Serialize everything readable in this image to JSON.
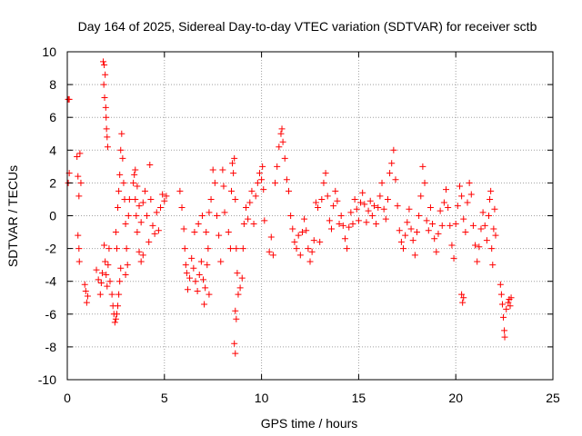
{
  "chart_data": {
    "type": "scatter",
    "title": "Day 164 of 2025, Sidereal Day-to-day VTEC variation (SDTVAR) for receiver sctb",
    "xlabel": "GPS time / hours",
    "ylabel": "SDTVAR / TECUs",
    "xlim": [
      0,
      25
    ],
    "ylim": [
      -10,
      10
    ],
    "xticks": [
      0,
      5,
      10,
      15,
      20,
      25
    ],
    "yticks": [
      -10,
      -8,
      -6,
      -4,
      -2,
      0,
      2,
      4,
      6,
      8,
      10
    ],
    "grid": true,
    "marker": "+",
    "color": "#ff0000",
    "series": [
      {
        "name": "SDTVAR",
        "points": [
          [
            0.05,
            7.1
          ],
          [
            0.1,
            7.1
          ],
          [
            0.05,
            2.0
          ],
          [
            0.1,
            2.6
          ],
          [
            0.5,
            3.6
          ],
          [
            0.55,
            2.4
          ],
          [
            0.6,
            1.2
          ],
          [
            0.55,
            -1.2
          ],
          [
            0.6,
            -2.0
          ],
          [
            0.62,
            -2.8
          ],
          [
            0.65,
            3.8
          ],
          [
            0.7,
            2.0
          ],
          [
            0.9,
            -4.2
          ],
          [
            0.95,
            -4.6
          ],
          [
            1.0,
            -5.3
          ],
          [
            1.05,
            -4.9
          ],
          [
            1.5,
            -3.3
          ],
          [
            1.6,
            -3.9
          ],
          [
            1.7,
            -4.8
          ],
          [
            1.75,
            -4.1
          ],
          [
            1.8,
            -3.5
          ],
          [
            1.85,
            9.4
          ],
          [
            1.9,
            9.2
          ],
          [
            1.95,
            8.6
          ],
          [
            1.88,
            8.0
          ],
          [
            1.92,
            7.2
          ],
          [
            1.98,
            6.6
          ],
          [
            2.0,
            6.0
          ],
          [
            2.02,
            5.3
          ],
          [
            2.05,
            4.8
          ],
          [
            2.08,
            4.2
          ],
          [
            1.9,
            -1.8
          ],
          [
            1.95,
            -2.8
          ],
          [
            2.0,
            -3.6
          ],
          [
            2.05,
            -4.3
          ],
          [
            2.1,
            -3.0
          ],
          [
            2.15,
            -2.0
          ],
          [
            2.2,
            -4.0
          ],
          [
            2.3,
            -4.8
          ],
          [
            2.35,
            -5.5
          ],
          [
            2.4,
            -6.0
          ],
          [
            2.45,
            -6.5
          ],
          [
            2.5,
            -6.3
          ],
          [
            2.55,
            -6.0
          ],
          [
            2.6,
            -5.5
          ],
          [
            2.65,
            -4.8
          ],
          [
            2.7,
            -4.0
          ],
          [
            2.75,
            -3.2
          ],
          [
            2.5,
            -1.0
          ],
          [
            2.55,
            -2.0
          ],
          [
            2.6,
            0.5
          ],
          [
            2.65,
            1.5
          ],
          [
            2.7,
            2.5
          ],
          [
            2.75,
            4.0
          ],
          [
            2.8,
            5.0
          ],
          [
            2.85,
            3.5
          ],
          [
            2.9,
            2.0
          ],
          [
            2.95,
            1.0
          ],
          [
            3.0,
            -0.5
          ],
          [
            3.05,
            -2.0
          ],
          [
            3.1,
            -3.0
          ],
          [
            3.0,
            -3.6
          ],
          [
            3.15,
            0.0
          ],
          [
            3.2,
            1.0
          ],
          [
            3.4,
            2.0
          ],
          [
            3.45,
            2.5
          ],
          [
            3.5,
            1.0
          ],
          [
            3.55,
            0.0
          ],
          [
            3.6,
            -1.0
          ],
          [
            3.7,
            -2.2
          ],
          [
            3.8,
            -2.8
          ],
          [
            3.9,
            -2.4
          ],
          [
            3.5,
            2.8
          ],
          [
            3.6,
            1.8
          ],
          [
            3.7,
            0.6
          ],
          [
            3.8,
            -0.4
          ],
          [
            3.9,
            0.8
          ],
          [
            4.0,
            1.5
          ],
          [
            4.1,
            0.0
          ],
          [
            4.2,
            -1.6
          ],
          [
            4.25,
            3.1
          ],
          [
            4.3,
            1.0
          ],
          [
            4.4,
            -0.6
          ],
          [
            4.5,
            -1.1
          ],
          [
            4.6,
            0.2
          ],
          [
            4.7,
            -0.9
          ],
          [
            4.8,
            0.5
          ],
          [
            4.9,
            1.3
          ],
          [
            5.0,
            0.9
          ],
          [
            5.1,
            1.2
          ],
          [
            5.8,
            1.5
          ],
          [
            5.9,
            0.5
          ],
          [
            6.0,
            -0.8
          ],
          [
            6.05,
            -2.0
          ],
          [
            6.1,
            -3.0
          ],
          [
            6.15,
            -3.5
          ],
          [
            6.2,
            -4.5
          ],
          [
            6.3,
            -3.8
          ],
          [
            6.4,
            -2.6
          ],
          [
            6.5,
            -3.2
          ],
          [
            6.6,
            -4.0
          ],
          [
            6.7,
            -4.6
          ],
          [
            6.8,
            -3.6
          ],
          [
            6.9,
            -2.8
          ],
          [
            7.0,
            -3.9
          ],
          [
            7.05,
            -5.4
          ],
          [
            7.1,
            -4.4
          ],
          [
            7.2,
            -3.0
          ],
          [
            7.25,
            -2.0
          ],
          [
            7.3,
            -4.8
          ],
          [
            6.55,
            -1.0
          ],
          [
            6.75,
            -0.5
          ],
          [
            6.95,
            0.0
          ],
          [
            7.15,
            -1.0
          ],
          [
            7.3,
            0.2
          ],
          [
            7.4,
            1.0
          ],
          [
            7.5,
            2.8
          ],
          [
            7.6,
            2.0
          ],
          [
            7.7,
            0.0
          ],
          [
            7.8,
            -1.2
          ],
          [
            7.9,
            -2.8
          ],
          [
            8.0,
            2.8
          ],
          [
            8.05,
            1.8
          ],
          [
            8.1,
            0.2
          ],
          [
            8.3,
            -1.0
          ],
          [
            8.4,
            -2.0
          ],
          [
            8.45,
            1.5
          ],
          [
            8.5,
            3.2
          ],
          [
            8.55,
            2.6
          ],
          [
            8.6,
            3.5
          ],
          [
            8.65,
            1.0
          ],
          [
            8.7,
            -2.0
          ],
          [
            8.75,
            -3.5
          ],
          [
            8.8,
            -4.8
          ],
          [
            8.65,
            -5.8
          ],
          [
            8.7,
            -6.3
          ],
          [
            8.6,
            -7.8
          ],
          [
            8.65,
            -8.4
          ],
          [
            8.9,
            -4.4
          ],
          [
            9.0,
            -3.8
          ],
          [
            9.05,
            -2.0
          ],
          [
            9.1,
            -0.5
          ],
          [
            9.2,
            0.5
          ],
          [
            9.3,
            -0.2
          ],
          [
            9.4,
            0.8
          ],
          [
            9.5,
            1.5
          ],
          [
            9.6,
            -0.5
          ],
          [
            9.7,
            1.2
          ],
          [
            9.8,
            2.0
          ],
          [
            9.9,
            2.6
          ],
          [
            10.0,
            2.2
          ],
          [
            10.05,
            3.0
          ],
          [
            10.1,
            1.6
          ],
          [
            10.15,
            -0.3
          ],
          [
            10.4,
            -2.2
          ],
          [
            10.5,
            -1.3
          ],
          [
            10.6,
            -2.4
          ],
          [
            10.7,
            2.0
          ],
          [
            10.8,
            3.0
          ],
          [
            10.9,
            4.2
          ],
          [
            11.0,
            5.0
          ],
          [
            11.05,
            5.3
          ],
          [
            11.1,
            4.5
          ],
          [
            11.2,
            3.5
          ],
          [
            11.3,
            2.2
          ],
          [
            11.4,
            1.5
          ],
          [
            11.5,
            0.0
          ],
          [
            11.6,
            -0.8
          ],
          [
            11.7,
            -1.6
          ],
          [
            11.8,
            -2.0
          ],
          [
            11.9,
            -1.2
          ],
          [
            12.0,
            -2.4
          ],
          [
            12.1,
            -1.0
          ],
          [
            12.2,
            -0.2
          ],
          [
            12.3,
            -0.9
          ],
          [
            12.4,
            -2.0
          ],
          [
            12.5,
            -2.8
          ],
          [
            12.6,
            -2.2
          ],
          [
            12.7,
            -1.5
          ],
          [
            12.8,
            0.8
          ],
          [
            12.9,
            0.5
          ],
          [
            13.0,
            -1.6
          ],
          [
            13.1,
            1.0
          ],
          [
            13.2,
            2.0
          ],
          [
            13.3,
            2.6
          ],
          [
            13.4,
            1.2
          ],
          [
            13.5,
            -0.3
          ],
          [
            13.6,
            -0.8
          ],
          [
            13.7,
            0.6
          ],
          [
            13.8,
            1.5
          ],
          [
            13.9,
            0.9
          ],
          [
            14.0,
            -0.5
          ],
          [
            14.1,
            0.0
          ],
          [
            14.2,
            -0.6
          ],
          [
            14.3,
            -1.4
          ],
          [
            14.4,
            -2.0
          ],
          [
            14.5,
            -0.7
          ],
          [
            14.6,
            0.2
          ],
          [
            14.7,
            -0.5
          ],
          [
            14.8,
            1.0
          ],
          [
            14.9,
            0.4
          ],
          [
            15.0,
            -0.3
          ],
          [
            15.1,
            0.8
          ],
          [
            15.2,
            1.4
          ],
          [
            15.3,
            0.7
          ],
          [
            15.4,
            -0.4
          ],
          [
            15.5,
            0.3
          ],
          [
            15.6,
            0.9
          ],
          [
            15.7,
            0.0
          ],
          [
            15.8,
            0.6
          ],
          [
            15.9,
            -0.5
          ],
          [
            16.0,
            0.5
          ],
          [
            16.1,
            1.2
          ],
          [
            16.2,
            2.0
          ],
          [
            16.3,
            0.4
          ],
          [
            16.4,
            -0.2
          ],
          [
            16.5,
            1.0
          ],
          [
            16.6,
            2.6
          ],
          [
            16.7,
            3.2
          ],
          [
            16.8,
            4.0
          ],
          [
            16.9,
            2.2
          ],
          [
            17.0,
            0.6
          ],
          [
            17.1,
            -0.9
          ],
          [
            17.2,
            -1.6
          ],
          [
            17.3,
            -2.0
          ],
          [
            17.4,
            -1.2
          ],
          [
            17.5,
            -0.4
          ],
          [
            17.6,
            0.4
          ],
          [
            17.7,
            -0.8
          ],
          [
            17.8,
            -1.5
          ],
          [
            17.9,
            -2.4
          ],
          [
            18.0,
            -1.0
          ],
          [
            18.1,
            0.0
          ],
          [
            18.2,
            1.2
          ],
          [
            18.3,
            3.0
          ],
          [
            18.4,
            2.0
          ],
          [
            18.5,
            -0.3
          ],
          [
            18.6,
            -0.9
          ],
          [
            18.7,
            0.5
          ],
          [
            18.8,
            -0.5
          ],
          [
            18.9,
            -1.4
          ],
          [
            19.0,
            -2.2
          ],
          [
            19.1,
            -1.1
          ],
          [
            19.2,
            0.3
          ],
          [
            19.3,
            -0.6
          ],
          [
            19.4,
            0.8
          ],
          [
            19.5,
            1.6
          ],
          [
            19.6,
            0.5
          ],
          [
            19.7,
            -0.6
          ],
          [
            19.8,
            -1.8
          ],
          [
            19.9,
            -2.6
          ],
          [
            20.0,
            -0.5
          ],
          [
            20.1,
            0.6
          ],
          [
            20.2,
            1.8
          ],
          [
            20.3,
            1.2
          ],
          [
            20.4,
            -0.2
          ],
          [
            20.5,
            -1.0
          ],
          [
            20.3,
            -4.8
          ],
          [
            20.35,
            -5.3
          ],
          [
            20.4,
            -5.0
          ],
          [
            20.6,
            0.8
          ],
          [
            20.7,
            2.0
          ],
          [
            20.8,
            1.3
          ],
          [
            20.9,
            -0.6
          ],
          [
            21.0,
            -1.8
          ],
          [
            21.1,
            -2.8
          ],
          [
            21.2,
            -1.9
          ],
          [
            21.3,
            -0.8
          ],
          [
            21.4,
            0.2
          ],
          [
            21.5,
            -0.6
          ],
          [
            21.6,
            -1.5
          ],
          [
            21.7,
            0.0
          ],
          [
            21.75,
            1.0
          ],
          [
            21.8,
            1.5
          ],
          [
            21.85,
            -2.0
          ],
          [
            21.9,
            -3.0
          ],
          [
            21.95,
            -0.8
          ],
          [
            22.0,
            0.4
          ],
          [
            22.05,
            -1.2
          ],
          [
            22.3,
            -4.2
          ],
          [
            22.35,
            -4.8
          ],
          [
            22.4,
            -5.4
          ],
          [
            22.45,
            -6.2
          ],
          [
            22.5,
            -7.0
          ],
          [
            22.52,
            -7.4
          ],
          [
            22.6,
            -5.7
          ],
          [
            22.7,
            -5.3
          ],
          [
            22.75,
            -5.1
          ],
          [
            22.8,
            -5.5
          ],
          [
            22.85,
            -5.0
          ]
        ]
      }
    ]
  }
}
